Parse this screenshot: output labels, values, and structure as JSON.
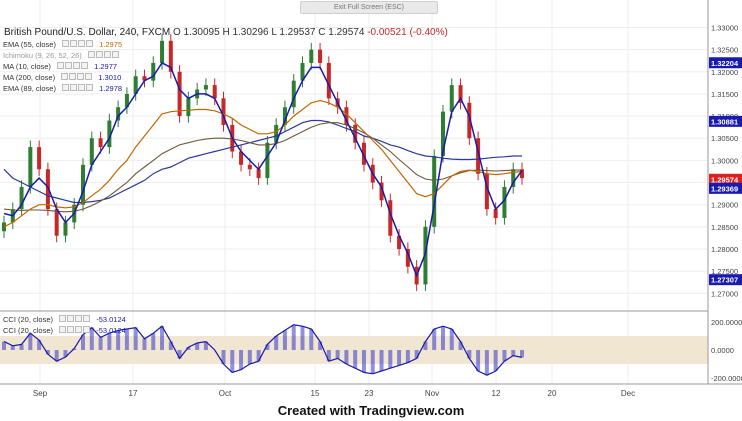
{
  "header": {
    "symbol": "British Pound/U.S. Dollar, 240, FXCM",
    "ohlc": "O 1.30095  H 1.30296  L 1.29537  C 1.29574",
    "change": "-0.00521 (-0.40%)",
    "fullscreen_label": "Exit Full Screen (ESC)"
  },
  "legend": [
    {
      "label": "EMA (55, close)",
      "value": "1.2975",
      "color": "#e69500"
    },
    {
      "label": "Ichimoku (9, 26, 52, 26)",
      "value": "",
      "color": "#aaaaaa"
    },
    {
      "label": "MA (10, close)",
      "value": "1.2977",
      "color": "#1a1aa8"
    },
    {
      "label": "MA (200, close)",
      "value": "1.3010",
      "color": "#1a1aa8"
    },
    {
      "label": "EMA (89, close)",
      "value": "1.2978",
      "color": "#1a1aa8"
    }
  ],
  "cci_legend": {
    "label1": "CCI (20, close)",
    "value1": "-53.0124",
    "label2": "CCI (20, close)",
    "value2": "-53.0124"
  },
  "price_axis": {
    "ticks": [
      "1.33000",
      "1.32500",
      "1.32000",
      "1.31500",
      "1.31000",
      "1.30500",
      "1.30000",
      "1.29500",
      "1.29000",
      "1.28500",
      "1.28000",
      "1.27500",
      "1.27000"
    ],
    "flags": [
      {
        "text": "1.32204",
        "value": 1.32204,
        "color": "#1a1ab0"
      },
      {
        "text": "1.30881",
        "value": 1.30881,
        "color": "#1a1ab0"
      },
      {
        "text": "1.29574",
        "value": 1.29574,
        "color": "#e02020"
      },
      {
        "text": "1.29369",
        "value": 1.29369,
        "color": "#1a1ab0"
      },
      {
        "text": "1.27307",
        "value": 1.27307,
        "color": "#1a1ab0"
      }
    ]
  },
  "cci_axis": {
    "ticks": [
      "200.0000",
      "0.0000",
      "-200.0000"
    ]
  },
  "time_axis": [
    "Sep",
    "17",
    "Oct",
    "15",
    "23",
    "Nov",
    "12",
    "20",
    "Dec"
  ],
  "credit": "Created with Tradingview.com",
  "colors": {
    "up": "#2e7d32",
    "down": "#c62828",
    "ma_blue": "#1a1aa8",
    "ema_orange": "#c06800",
    "cci_fill": "#f0e6d2"
  },
  "chart_data": {
    "type": "line",
    "ylim": [
      1.266,
      1.3335
    ],
    "close": [
      1.286,
      1.289,
      1.294,
      1.303,
      1.298,
      1.289,
      1.283,
      1.286,
      1.29,
      1.299,
      1.305,
      1.303,
      1.309,
      1.312,
      1.315,
      1.319,
      1.318,
      1.322,
      1.327,
      1.32,
      1.31,
      1.314,
      1.316,
      1.317,
      1.314,
      1.308,
      1.302,
      1.299,
      1.298,
      1.296,
      1.304,
      1.308,
      1.312,
      1.318,
      1.322,
      1.325,
      1.322,
      1.314,
      1.312,
      1.308,
      1.304,
      1.299,
      1.295,
      1.291,
      1.283,
      1.28,
      1.276,
      1.272,
      1.285,
      1.301,
      1.311,
      1.317,
      1.313,
      1.305,
      1.297,
      1.289,
      1.287,
      1.294,
      1.298,
      1.296
    ],
    "ma10": [
      1.288,
      1.2875,
      1.29,
      1.294,
      1.296,
      1.294,
      1.289,
      1.286,
      1.288,
      1.293,
      1.299,
      1.302,
      1.305,
      1.31,
      1.312,
      1.315,
      1.318,
      1.319,
      1.322,
      1.321,
      1.316,
      1.314,
      1.315,
      1.315,
      1.314,
      1.31,
      1.305,
      1.302,
      1.3,
      1.298,
      1.301,
      1.304,
      1.309,
      1.314,
      1.318,
      1.321,
      1.321,
      1.317,
      1.313,
      1.309,
      1.305,
      1.301,
      1.297,
      1.294,
      1.288,
      1.283,
      1.279,
      1.274,
      1.279,
      1.29,
      1.302,
      1.311,
      1.314,
      1.31,
      1.302,
      1.294,
      1.289,
      1.291,
      1.295,
      1.2977
    ],
    "ma200": [
      1.298,
      1.296,
      1.295,
      1.294,
      1.293,
      1.292,
      1.2915,
      1.291,
      1.2905,
      1.2905,
      1.2907,
      1.291,
      1.2915,
      1.2925,
      1.2935,
      1.2945,
      1.2955,
      1.297,
      1.298,
      1.2985,
      1.2995,
      1.3005,
      1.301,
      1.3015,
      1.302,
      1.3025,
      1.303,
      1.3035,
      1.304,
      1.3045,
      1.305,
      1.3055,
      1.3065,
      1.3075,
      1.3085,
      1.309,
      1.309,
      1.3087,
      1.308,
      1.3072,
      1.3065,
      1.3055,
      1.305,
      1.3043,
      1.3035,
      1.303,
      1.3022,
      1.3015,
      1.301,
      1.3008,
      1.3005,
      1.3003,
      1.3002,
      1.3002,
      1.3003,
      1.3005,
      1.3007,
      1.3008,
      1.301,
      1.301
    ],
    "ema55": [
      1.285,
      1.286,
      1.2875,
      1.289,
      1.29,
      1.29,
      1.2895,
      1.2893,
      1.2895,
      1.2905,
      1.292,
      1.2935,
      1.2955,
      1.298,
      1.3,
      1.303,
      1.3055,
      1.308,
      1.3105,
      1.311,
      1.3112,
      1.3113,
      1.3115,
      1.3115,
      1.3112,
      1.3105,
      1.3095,
      1.308,
      1.307,
      1.306,
      1.306,
      1.3065,
      1.308,
      1.31,
      1.3115,
      1.313,
      1.3135,
      1.313,
      1.312,
      1.3105,
      1.3085,
      1.3065,
      1.3045,
      1.3025,
      1.3,
      1.2975,
      1.295,
      1.2925,
      1.2918,
      1.2925,
      1.2945,
      1.2965,
      1.2975,
      1.2978,
      1.2975,
      1.297,
      1.2968,
      1.297,
      1.2973,
      1.2975
    ],
    "ema89": [
      1.289,
      1.2888,
      1.2887,
      1.2888,
      1.2888,
      1.2887,
      1.2885,
      1.2884,
      1.2885,
      1.289,
      1.2898,
      1.2908,
      1.292,
      1.2935,
      1.295,
      1.297,
      1.2985,
      1.3,
      1.3015,
      1.3025,
      1.3035,
      1.304,
      1.3045,
      1.3048,
      1.305,
      1.305,
      1.3048,
      1.3045,
      1.304,
      1.3035,
      1.3035,
      1.3038,
      1.3045,
      1.3055,
      1.3065,
      1.3075,
      1.3082,
      1.3085,
      1.3085,
      1.308,
      1.3072,
      1.3062,
      1.305,
      1.3035,
      1.302,
      1.3002,
      1.2985,
      1.2968,
      1.2958,
      1.2955,
      1.2958,
      1.2965,
      1.2972,
      1.2977,
      1.2978,
      1.2977,
      1.2976,
      1.2977,
      1.2978,
      1.2978
    ],
    "cci": [
      60,
      30,
      40,
      120,
      70,
      -30,
      -80,
      -50,
      10,
      110,
      160,
      90,
      120,
      140,
      150,
      160,
      80,
      120,
      170,
      60,
      -60,
      20,
      50,
      60,
      0,
      -100,
      -160,
      -140,
      -100,
      -80,
      40,
      100,
      140,
      180,
      170,
      150,
      60,
      -80,
      -60,
      -100,
      -130,
      -160,
      -170,
      -150,
      -130,
      -110,
      -90,
      -60,
      60,
      150,
      170,
      150,
      60,
      -60,
      -150,
      -180,
      -150,
      -80,
      -40,
      -53
    ]
  }
}
